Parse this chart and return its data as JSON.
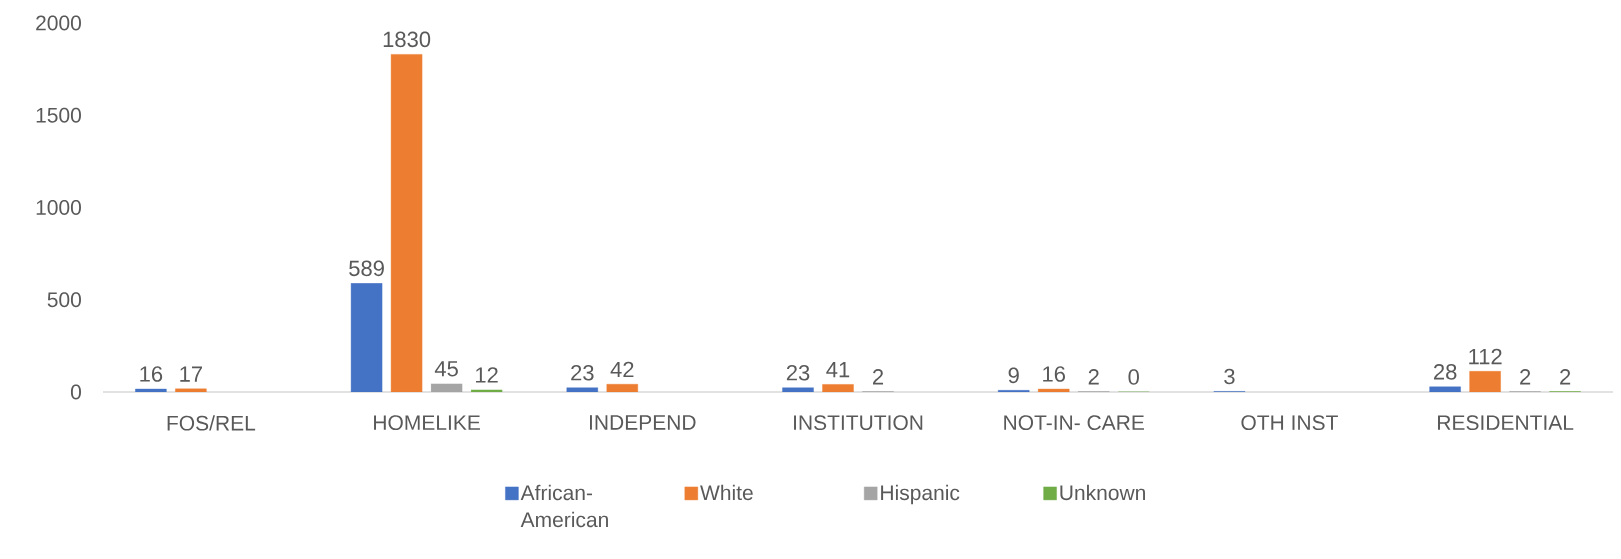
{
  "chart_data": {
    "type": "bar",
    "categories": [
      "FOS/REL",
      "HOMELIKE",
      "INDEPEND",
      "INSTITUTION",
      "NOT-IN- CARE",
      "OTH INST",
      "RESIDENTIAL"
    ],
    "series": [
      {
        "name": "African-American",
        "color": "#4472c4",
        "values": [
          16,
          589,
          23,
          23,
          9,
          3,
          28
        ]
      },
      {
        "name": "White",
        "color": "#ed7d31",
        "values": [
          17,
          1830,
          42,
          41,
          16,
          null,
          112
        ]
      },
      {
        "name": "Hispanic",
        "color": "#a5a5a5",
        "values": [
          null,
          45,
          null,
          2,
          2,
          null,
          2
        ]
      },
      {
        "name": "Unknown",
        "color": "#70ad47",
        "values": [
          null,
          12,
          null,
          null,
          0,
          null,
          2
        ]
      }
    ],
    "ylim": [
      0,
      2000
    ],
    "yticks": [
      0,
      500,
      1000,
      1500,
      2000
    ],
    "data_labels": true,
    "legend": "bottom"
  }
}
